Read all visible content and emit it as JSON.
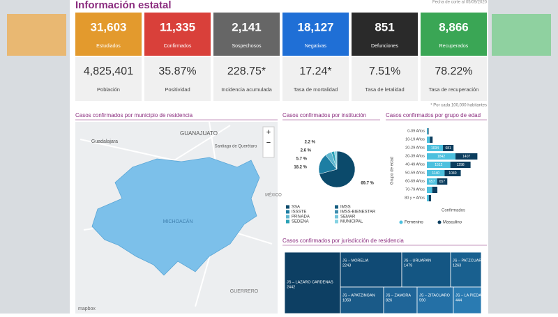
{
  "header": {
    "title": "Información estatal",
    "date": "Fecha de corte al 05/09/2020"
  },
  "cards": [
    {
      "value": "31,603",
      "label": "Estudiados",
      "color": "#e39a2d"
    },
    {
      "value": "11,335",
      "label": "Confirmados",
      "color": "#d9403a"
    },
    {
      "value": "2,141",
      "label": "Sospechosos",
      "color": "#666666"
    },
    {
      "value": "18,127",
      "label": "Negativas",
      "color": "#1f6fd6"
    },
    {
      "value": "851",
      "label": "Defunciones",
      "color": "#2a2a2a"
    },
    {
      "value": "8,866",
      "label": "Recuperados",
      "color": "#3aa655"
    }
  ],
  "stats": [
    {
      "value": "4,825,401",
      "label": "Población"
    },
    {
      "value": "35.87%",
      "label": "Positividad"
    },
    {
      "value": "228.75*",
      "label": "Incidencia acumulada"
    },
    {
      "value": "17.24*",
      "label": "Tasa de mortalidad"
    },
    {
      "value": "7.51%",
      "label": "Tasa de letalidad"
    },
    {
      "value": "78.22%",
      "label": "Tasa de recuperación"
    }
  ],
  "note": "* Por cada 100,000 habitantes",
  "map": {
    "title": "Casos confirmados por municipio de residencia",
    "labels": [
      "GUANAJUATO",
      "Guadalajara",
      "Santiago de Querétaro",
      "MICHOACÁN",
      "GUERRERO",
      "MÉXICO"
    ],
    "controls": [
      "+",
      "−"
    ],
    "attribution": "mapbox"
  },
  "institution_chart": {
    "title": "Casos confirmados por institución",
    "type": "pie",
    "values": [
      69.7,
      18.2,
      5.7,
      2.6,
      2.2
    ],
    "value_labels": [
      "69.7 %",
      "18.2 %",
      "5.7 %",
      "2.6 %",
      "2.2 %"
    ],
    "colors": [
      "#0b4a6b",
      "#1d7ea3",
      "#5eb6cf",
      "#2aa2b6",
      "#86d3e3"
    ],
    "legend": [
      {
        "name": "SSA",
        "color": "#0b4a6b"
      },
      {
        "name": "ISSSTE",
        "color": "#1d7ea3"
      },
      {
        "name": "PRIVADA",
        "color": "#5eb6cf"
      },
      {
        "name": "SEDENA",
        "color": "#2aa2b6"
      },
      {
        "name": "IMSS",
        "color": "#175e80"
      },
      {
        "name": "IMSS-BIENESTAR",
        "color": "#3f8fb0"
      },
      {
        "name": "SEMAR",
        "color": "#74c4da"
      },
      {
        "name": "MUNICIPAL",
        "color": "#86d3e3"
      }
    ]
  },
  "age_chart": {
    "title": "Casos confirmados por grupo de edad",
    "type": "bar",
    "categories": [
      "0-09 Años",
      "10-19 Años",
      "20-29 Años",
      "30-39 Años",
      "40-49 Años",
      "50-59 Años",
      "60-69 Años",
      "70-79 Años",
      "80 y + Años"
    ],
    "series": [
      {
        "name": "Femenino",
        "color": "#4cc0de",
        "values": [
          61,
          192,
          1034,
          1842,
          1512,
          1140,
          657,
          345,
          126
        ]
      },
      {
        "name": "Masculino",
        "color": "#0b3d5e",
        "values": [
          52,
          178,
          681,
          1407,
          1298,
          1040,
          657,
          330,
          140
        ]
      }
    ],
    "xlim": [
      0,
      3500
    ],
    "xlabel": "Confirmados",
    "ylabel": "Grupo de edad"
  },
  "treemap": {
    "title": "Casos confirmados por jurisdicción de residencia",
    "items": [
      {
        "label": "JS – LAZARO CARDENAS",
        "value": 2442
      },
      {
        "label": "JS – MORELIA",
        "value": 2243
      },
      {
        "label": "JS – URUAPAN",
        "value": 1479
      },
      {
        "label": "JS – PATZCUARO",
        "value": 1263
      },
      {
        "label": "JS – APATZINGAN",
        "value": 1050
      },
      {
        "label": "JS – ZAMORA",
        "value": 826
      },
      {
        "label": "JS – ZITACUARO",
        "value": 590
      },
      {
        "label": "JS – LA PIEDAD",
        "value": 444
      }
    ]
  }
}
